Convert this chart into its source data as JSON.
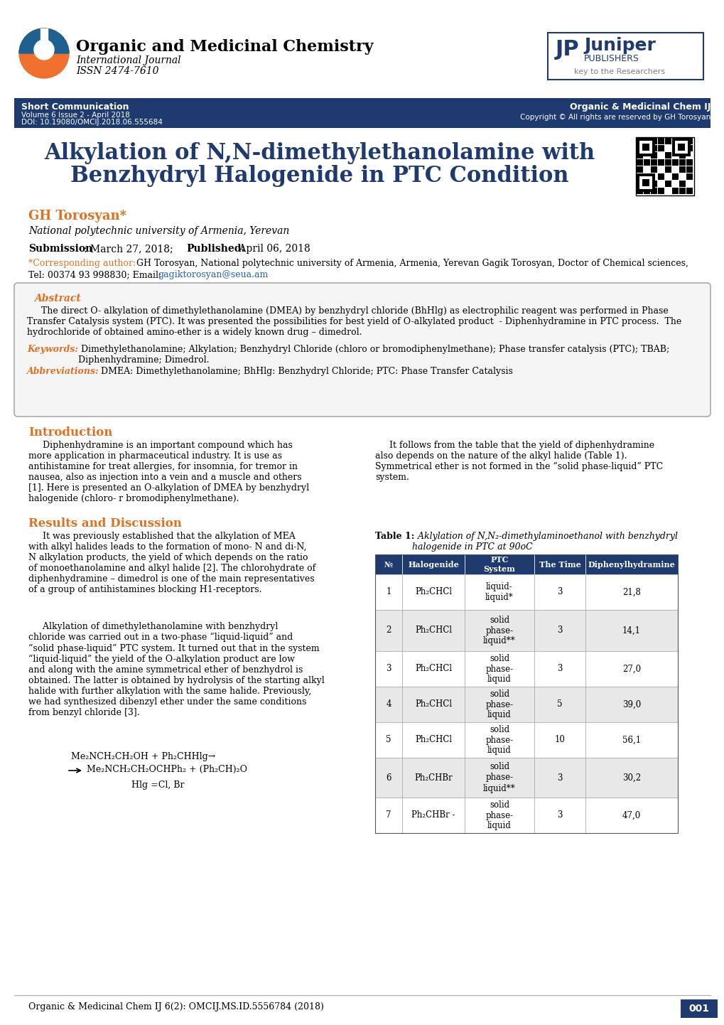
{
  "page_bg": "#ffffff",
  "header_bar_color": "#1e3a6e",
  "journal_title": "Organic and Medicinal Chemistry",
  "journal_subtitle": "International Journal",
  "journal_issn": "ISSN 2474-7610",
  "short_comm_label": "Short Communication",
  "volume_info": "Volume 6 Issue 2 - April 2018",
  "doi_info": "DOI: 10.19080/OMCIJ.2018.06.555684",
  "right_header": "Organic & Medicinal Chem IJ",
  "copyright_text": "Copyright © All rights are reserved by GH Torosyan",
  "article_title_line1": "Alkylation of N,N-dimethylethanolamine with",
  "article_title_line2": "Benzhydryl Halogenide in PTC Condition",
  "title_color": "#1e3a6e",
  "author_name": "GH Torosyan*",
  "author_color": "#e07020",
  "affiliation": "National polytechnic university of Armenia, Yerevan",
  "email": "gagiktorosyan@seua.am",
  "abstract_title": "Abstract",
  "keywords_label": "Keywords:",
  "abbrev_label": "Abbreviations:",
  "section_intro": "Introduction",
  "section_results": "Results and Discussion",
  "section_color": "#e07020",
  "table_headers": [
    "№",
    "Halogenide",
    "PTC\nSystem",
    "The Time",
    "Diphenylhydramine"
  ],
  "table_data": [
    [
      "1",
      "Ph₂CHCl",
      "liquid-\nliquid*",
      "3",
      "21,8"
    ],
    [
      "2",
      "Ph₂CHCl",
      "solid\nphase-\nliquid**",
      "3",
      "14,1"
    ],
    [
      "3",
      "Ph₂CHCl",
      "solid\nphase-\nliquid",
      "3",
      "27,0"
    ],
    [
      "4",
      "Ph₂CHCl",
      "solid\nphase-\nliquid",
      "5",
      "39,0"
    ],
    [
      "5",
      "Ph₂CHCl",
      "solid\nphase-\nliquid",
      "10",
      "56,1"
    ],
    [
      "6",
      "Ph₂CHBr",
      "solid\nphase-\nliquid**",
      "3",
      "30,2"
    ],
    [
      "7",
      "Ph₂CHBr -",
      "solid\nphase-\nliquid",
      "3",
      "47,0"
    ]
  ],
  "footer_text": "Organic & Medicinal Chem IJ 6(2): OMCIJ.MS.ID.5556784 (2018)",
  "footer_page": "001",
  "orange_color": "#e07020",
  "dark_blue": "#1e3a6e",
  "abstract_box_bg": "#f5f5f5"
}
